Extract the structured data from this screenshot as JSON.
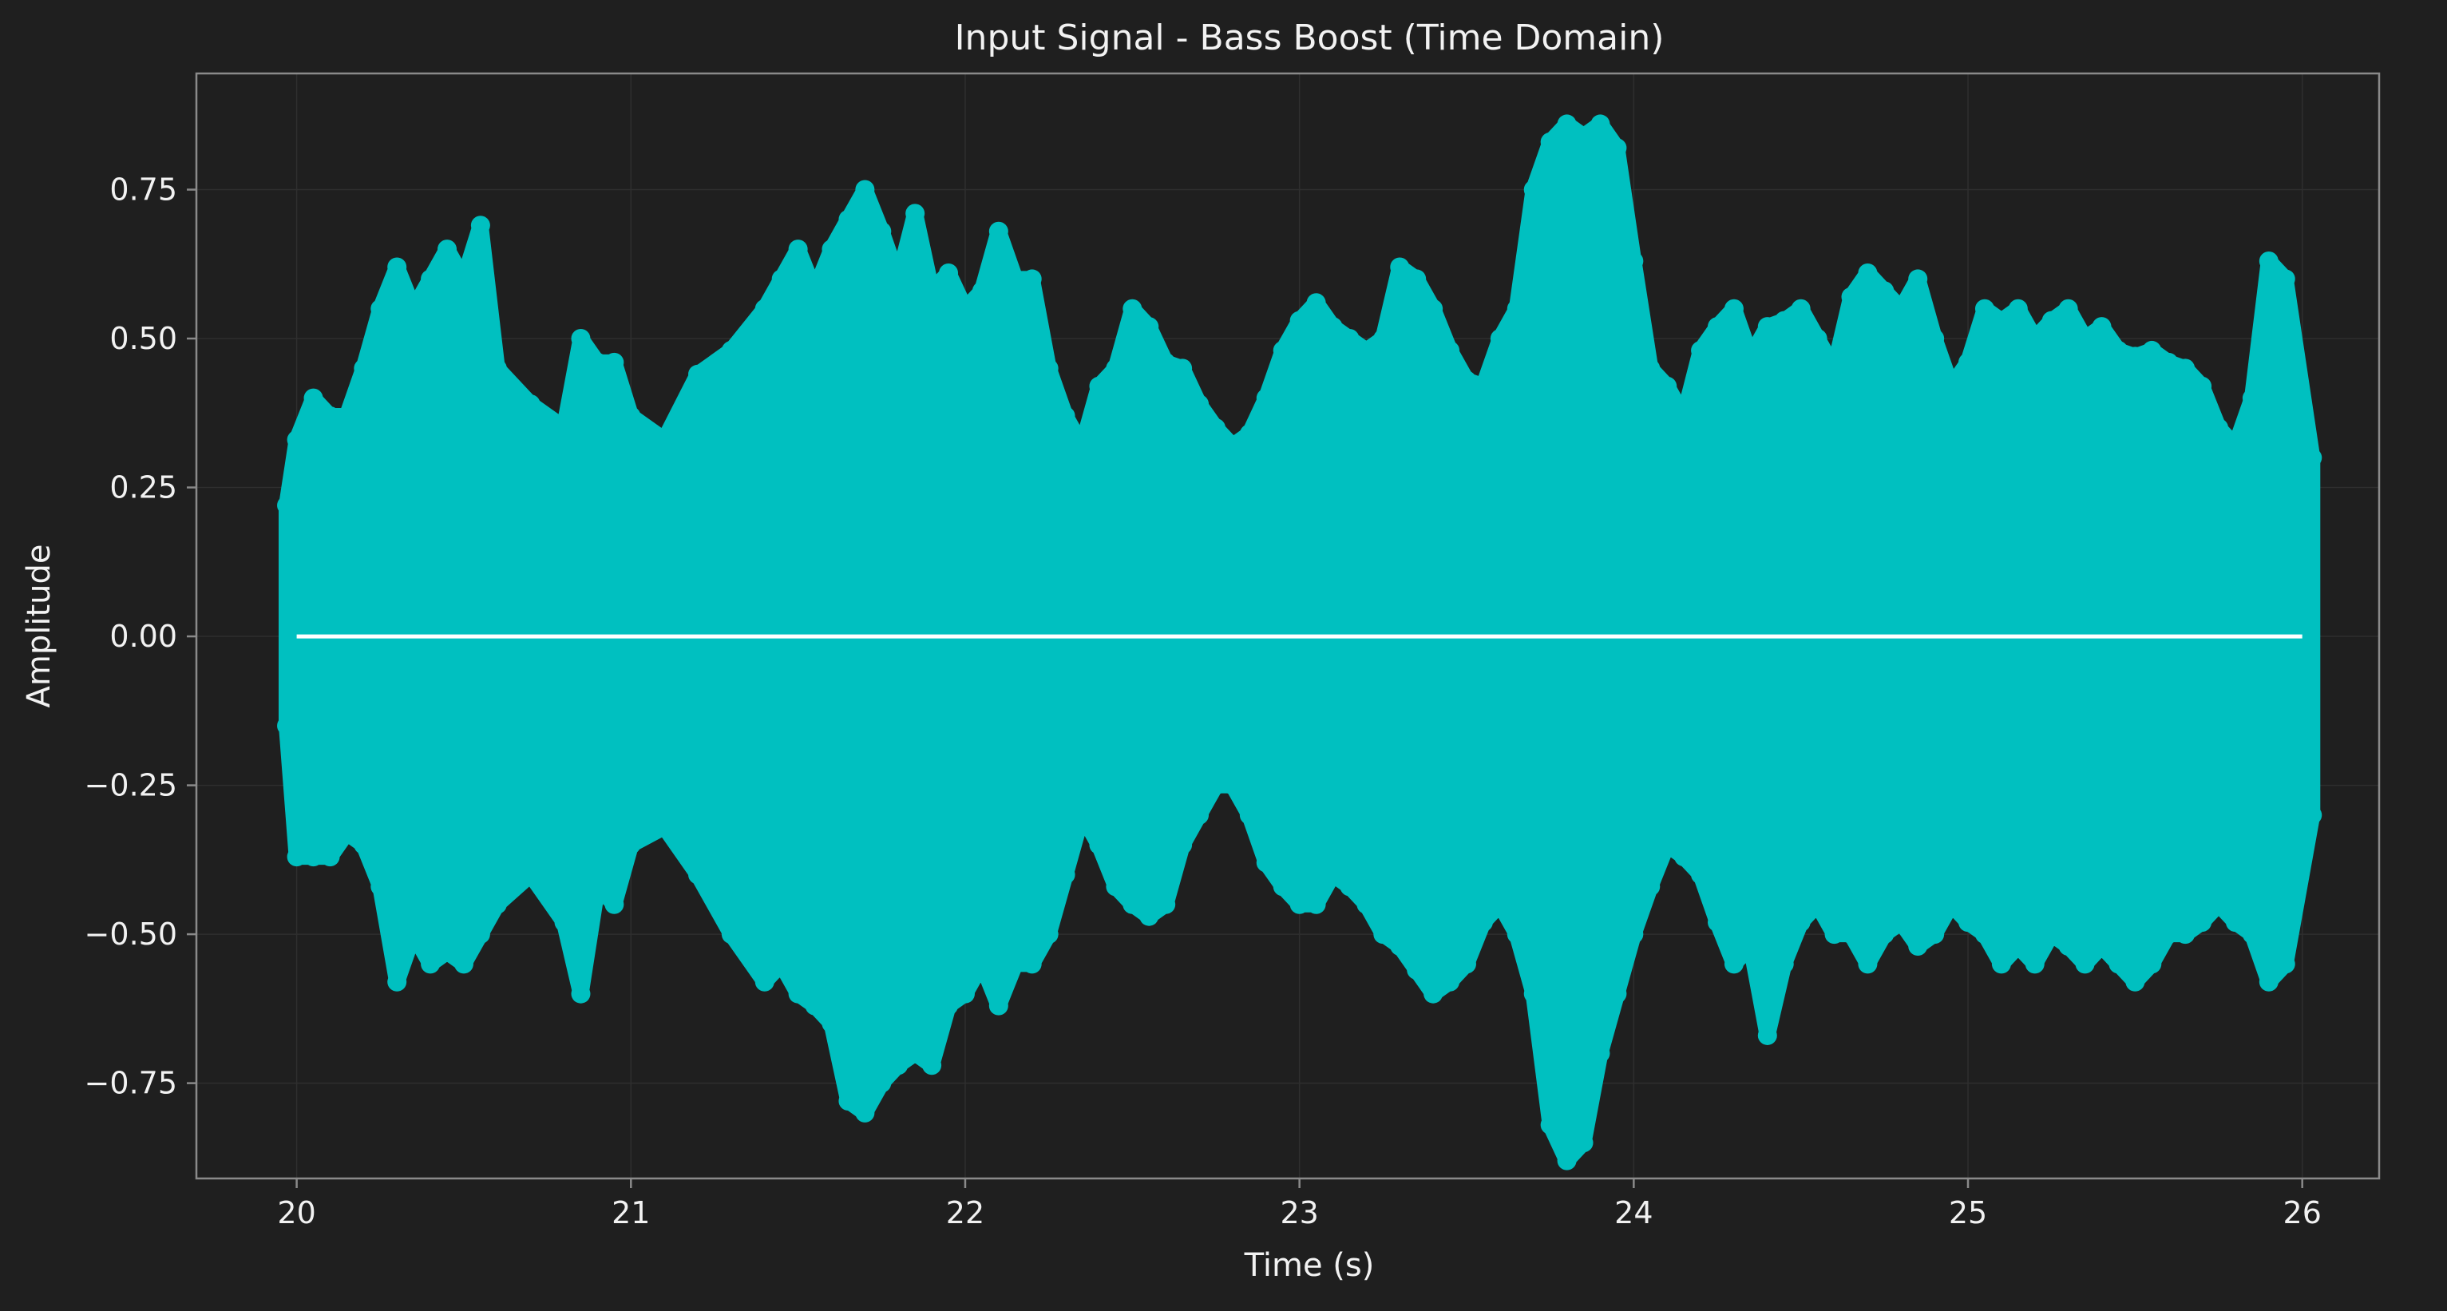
{
  "colors": {
    "background": "#1f1f1f",
    "axes_frame": "#8a8a8a",
    "grid": "#2f2f2f",
    "signal": "#00c0c0",
    "envelope_line": "#ffffff",
    "text": "#f2f2f2"
  },
  "chart_data": {
    "type": "scatter",
    "title": "Input Signal - Bass Boost (Time Domain)",
    "xlabel": "Time (s)",
    "ylabel": "Amplitude",
    "xlim": [
      19.7,
      26.23
    ],
    "ylim": [
      -0.91,
      0.945
    ],
    "grid": true,
    "legend": "none",
    "x_ticks": [
      20,
      21,
      22,
      23,
      24,
      25,
      26
    ],
    "x_tick_labels": [
      "20",
      "21",
      "22",
      "23",
      "24",
      "25",
      "26"
    ],
    "y_ticks": [
      0.75,
      0.5,
      0.25,
      0.0,
      -0.25,
      -0.5,
      -0.75
    ],
    "y_tick_labels": [
      "0.75",
      "0.50",
      "0.25",
      "0.00",
      "−0.25",
      "−0.50",
      "−0.75"
    ],
    "series": [
      {
        "kind": "scatter-envelope",
        "color": "#00c0c0",
        "x": [
          19.97,
          20.0,
          20.05,
          20.1,
          20.15,
          20.2,
          20.25,
          20.3,
          20.35,
          20.4,
          20.45,
          20.5,
          20.55,
          20.6,
          20.7,
          20.8,
          20.85,
          20.9,
          20.95,
          21.0,
          21.1,
          21.2,
          21.3,
          21.4,
          21.45,
          21.5,
          21.55,
          21.6,
          21.65,
          21.7,
          21.75,
          21.8,
          21.85,
          21.9,
          21.95,
          22.0,
          22.05,
          22.1,
          22.15,
          22.2,
          22.25,
          22.3,
          22.35,
          22.4,
          22.45,
          22.5,
          22.55,
          22.6,
          22.65,
          22.7,
          22.75,
          22.8,
          22.85,
          22.9,
          22.95,
          23.0,
          23.05,
          23.1,
          23.15,
          23.2,
          23.25,
          23.3,
          23.35,
          23.4,
          23.45,
          23.5,
          23.55,
          23.6,
          23.65,
          23.7,
          23.75,
          23.8,
          23.85,
          23.9,
          23.95,
          24.0,
          24.05,
          24.1,
          24.15,
          24.2,
          24.25,
          24.3,
          24.35,
          24.4,
          24.45,
          24.5,
          24.55,
          24.6,
          24.65,
          24.7,
          24.75,
          24.8,
          24.85,
          24.9,
          24.95,
          25.0,
          25.05,
          25.1,
          25.15,
          25.2,
          25.25,
          25.3,
          25.35,
          25.4,
          25.45,
          25.5,
          25.55,
          25.6,
          25.65,
          25.7,
          25.75,
          25.8,
          25.85,
          25.9,
          25.95,
          26.03
        ],
        "upper": [
          0.22,
          0.33,
          0.4,
          0.37,
          0.37,
          0.45,
          0.55,
          0.62,
          0.55,
          0.6,
          0.65,
          0.6,
          0.69,
          0.45,
          0.39,
          0.35,
          0.5,
          0.46,
          0.46,
          0.37,
          0.33,
          0.44,
          0.48,
          0.55,
          0.6,
          0.65,
          0.58,
          0.65,
          0.7,
          0.75,
          0.68,
          0.6,
          0.71,
          0.58,
          0.61,
          0.55,
          0.58,
          0.68,
          0.6,
          0.6,
          0.45,
          0.37,
          0.32,
          0.42,
          0.45,
          0.55,
          0.52,
          0.46,
          0.45,
          0.39,
          0.35,
          0.32,
          0.34,
          0.4,
          0.48,
          0.53,
          0.56,
          0.52,
          0.5,
          0.48,
          0.5,
          0.62,
          0.6,
          0.55,
          0.48,
          0.43,
          0.42,
          0.5,
          0.55,
          0.75,
          0.83,
          0.86,
          0.84,
          0.86,
          0.82,
          0.63,
          0.45,
          0.42,
          0.37,
          0.48,
          0.52,
          0.55,
          0.47,
          0.52,
          0.53,
          0.55,
          0.5,
          0.45,
          0.57,
          0.61,
          0.58,
          0.55,
          0.6,
          0.5,
          0.42,
          0.46,
          0.55,
          0.53,
          0.55,
          0.5,
          0.53,
          0.55,
          0.5,
          0.52,
          0.48,
          0.47,
          0.48,
          0.46,
          0.45,
          0.42,
          0.35,
          0.32,
          0.4,
          0.63,
          0.6,
          0.3
        ],
        "lower": [
          -0.15,
          -0.37,
          -0.37,
          -0.37,
          -0.33,
          -0.35,
          -0.42,
          -0.58,
          -0.5,
          -0.55,
          -0.53,
          -0.55,
          -0.5,
          -0.45,
          -0.4,
          -0.48,
          -0.6,
          -0.42,
          -0.45,
          -0.35,
          -0.32,
          -0.4,
          -0.5,
          -0.58,
          -0.55,
          -0.6,
          -0.62,
          -0.65,
          -0.78,
          -0.8,
          -0.75,
          -0.72,
          -0.7,
          -0.72,
          -0.62,
          -0.6,
          -0.55,
          -0.62,
          -0.55,
          -0.55,
          -0.5,
          -0.4,
          -0.3,
          -0.35,
          -0.42,
          -0.45,
          -0.47,
          -0.45,
          -0.35,
          -0.3,
          -0.25,
          -0.25,
          -0.3,
          -0.38,
          -0.42,
          -0.45,
          -0.45,
          -0.4,
          -0.42,
          -0.45,
          -0.5,
          -0.52,
          -0.56,
          -0.6,
          -0.58,
          -0.55,
          -0.48,
          -0.45,
          -0.5,
          -0.6,
          -0.82,
          -0.88,
          -0.85,
          -0.7,
          -0.6,
          -0.5,
          -0.42,
          -0.35,
          -0.37,
          -0.4,
          -0.48,
          -0.55,
          -0.52,
          -0.67,
          -0.55,
          -0.48,
          -0.45,
          -0.5,
          -0.5,
          -0.55,
          -0.5,
          -0.48,
          -0.52,
          -0.5,
          -0.45,
          -0.48,
          -0.5,
          -0.55,
          -0.52,
          -0.55,
          -0.5,
          -0.52,
          -0.55,
          -0.52,
          -0.55,
          -0.58,
          -0.55,
          -0.5,
          -0.5,
          -0.48,
          -0.45,
          -0.48,
          -0.5,
          -0.58,
          -0.55,
          -0.3
        ]
      },
      {
        "kind": "line",
        "color": "#ffffff",
        "x": [
          20.0,
          26.0
        ],
        "y": [
          0.0,
          0.0
        ]
      }
    ]
  }
}
